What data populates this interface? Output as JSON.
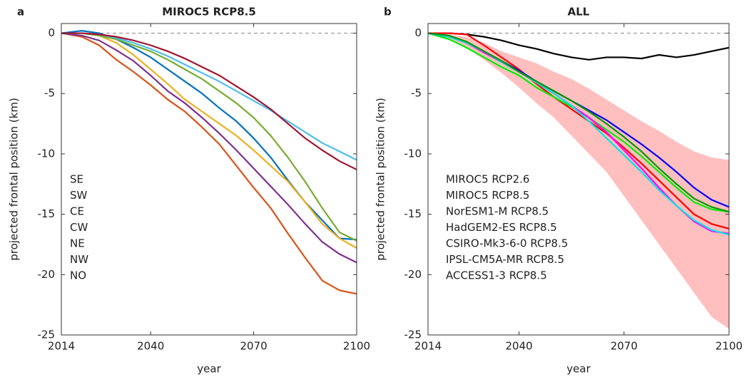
{
  "chart_data": [
    {
      "type": "line",
      "panel": "a",
      "title": "MIROC5 RCP8.5",
      "x_label": "year",
      "y_label": "projected frontal position (km)",
      "xlim": [
        2014,
        2100
      ],
      "xticks": [
        2014,
        2040,
        2070,
        2100
      ],
      "ylim": [
        -25,
        0.8
      ],
      "yticks": [
        -25,
        -20,
        -15,
        -10,
        -5,
        0
      ],
      "zero_line": 0,
      "legend": "left",
      "x": [
        2014,
        2020,
        2025,
        2030,
        2035,
        2040,
        2045,
        2050,
        2055,
        2060,
        2065,
        2070,
        2075,
        2080,
        2085,
        2090,
        2095,
        2100
      ],
      "series": [
        {
          "name": "SE",
          "color": "#0072bd",
          "values": [
            0,
            0.2,
            0,
            -0.5,
            -1.2,
            -2,
            -3,
            -4,
            -5,
            -6.2,
            -7.3,
            -8.7,
            -10.3,
            -12.2,
            -14,
            -15.5,
            -17,
            -17.1
          ]
        },
        {
          "name": "SW",
          "color": "#d95319",
          "values": [
            0,
            -0.3,
            -1,
            -2.2,
            -3.2,
            -4.3,
            -5.5,
            -6.5,
            -7.8,
            -9.2,
            -11,
            -12.8,
            -14.5,
            -16.6,
            -18.6,
            -20.5,
            -21.3,
            -21.6
          ]
        },
        {
          "name": "CE",
          "color": "#edb120",
          "values": [
            0,
            0,
            -0.2,
            -0.8,
            -1.8,
            -3,
            -4.2,
            -5.5,
            -6.5,
            -7.5,
            -8.5,
            -9.7,
            -11,
            -12.3,
            -14,
            -15.8,
            -17,
            -17.8
          ]
        },
        {
          "name": "CW",
          "color": "#7e2f8e",
          "values": [
            0,
            -0.2,
            -0.6,
            -1.4,
            -2.3,
            -3.5,
            -4.8,
            -5.8,
            -7,
            -8.3,
            -9.7,
            -11.2,
            -12.7,
            -14.2,
            -15.8,
            -17.3,
            -18.3,
            -19
          ]
        },
        {
          "name": "NE",
          "color": "#77ac30",
          "values": [
            0,
            0,
            -0.2,
            -0.5,
            -1,
            -1.5,
            -2.2,
            -3,
            -3.8,
            -4.8,
            -5.8,
            -7,
            -8.5,
            -10.3,
            -12.3,
            -14.5,
            -16.5,
            -17.2
          ]
        },
        {
          "name": "NW",
          "color": "#4dbeee",
          "values": [
            0,
            0,
            -0.1,
            -0.4,
            -0.8,
            -1.3,
            -1.9,
            -2.6,
            -3.3,
            -4,
            -4.8,
            -5.6,
            -6.4,
            -7.3,
            -8.2,
            -9.1,
            -9.8,
            -10.5
          ]
        },
        {
          "name": "NO",
          "color": "#a2142f",
          "values": [
            0,
            0,
            -0.1,
            -0.3,
            -0.6,
            -1,
            -1.5,
            -2.1,
            -2.8,
            -3.5,
            -4.4,
            -5.3,
            -6.3,
            -7.5,
            -8.7,
            -9.7,
            -10.6,
            -11.3
          ]
        }
      ]
    },
    {
      "type": "line",
      "panel": "b",
      "title": "ALL",
      "x_label": "year",
      "y_label": "projected frontal position (km)",
      "xlim": [
        2014,
        2100
      ],
      "xticks": [
        2014,
        2040,
        2070,
        2100
      ],
      "ylim": [
        -25,
        0.8
      ],
      "yticks": [
        -25,
        -20,
        -15,
        -10,
        -5,
        0
      ],
      "zero_line": 0,
      "legend": "left",
      "x": [
        2014,
        2020,
        2025,
        2030,
        2035,
        2040,
        2045,
        2050,
        2055,
        2060,
        2065,
        2070,
        2075,
        2080,
        2085,
        2090,
        2095,
        2100
      ],
      "band": {
        "color": "#ffbfbf",
        "upper": [
          0,
          -0.1,
          -0.3,
          -0.8,
          -1.5,
          -2,
          -2.5,
          -3.2,
          -3.8,
          -4.6,
          -5.5,
          -6.4,
          -7.3,
          -8.1,
          -9,
          -9.8,
          -10.3,
          -10.5
        ],
        "lower": [
          0,
          -0.5,
          -1.2,
          -2.2,
          -3.3,
          -4.5,
          -5.8,
          -7,
          -8.5,
          -10,
          -11.5,
          -13.5,
          -15.5,
          -17.5,
          -19.5,
          -21.5,
          -23.5,
          -24.5
        ]
      },
      "series": [
        {
          "name": "MIROC5 RCP2.6",
          "color": "#000000",
          "values": [
            0,
            0,
            -0.1,
            -0.3,
            -0.6,
            -1,
            -1.3,
            -1.7,
            -2,
            -2.2,
            -2,
            -2,
            -2.1,
            -1.8,
            -2,
            -1.8,
            -1.5,
            -1.2
          ]
        },
        {
          "name": "MIROC5 RCP8.5",
          "color": "#ff0000",
          "values": [
            0,
            0,
            -0.1,
            -1,
            -2,
            -3,
            -4.2,
            -5.3,
            -6.3,
            -7.3,
            -8.3,
            -9.5,
            -10.8,
            -12.2,
            -13.6,
            -15,
            -15.8,
            -16.2
          ]
        },
        {
          "name": "NorESM1-M RCP8.5",
          "color": "#00ee00",
          "values": [
            0,
            -0.5,
            -1.2,
            -2,
            -2.8,
            -3.5,
            -4.5,
            -5.3,
            -6.1,
            -7,
            -8,
            -9,
            -10.2,
            -11.5,
            -12.8,
            -14,
            -14.6,
            -14.8
          ]
        },
        {
          "name": "HadGEM2-ES RCP8.5",
          "color": "#0000ff",
          "values": [
            0,
            -0.3,
            -0.8,
            -1.5,
            -2.3,
            -3.1,
            -4,
            -4.8,
            -5.6,
            -6.4,
            -7.2,
            -8.2,
            -9.2,
            -10.3,
            -11.5,
            -12.8,
            -13.8,
            -14.4
          ]
        },
        {
          "name": "CSIRO-Mk3-6-0 RCP8.5",
          "color": "#ff00ff",
          "values": [
            0,
            -0.3,
            -0.8,
            -1.6,
            -2.4,
            -3.2,
            -4.1,
            -5,
            -6,
            -7,
            -8.2,
            -9.7,
            -11.2,
            -12.8,
            -14.3,
            -15.6,
            -16.4,
            -16.6
          ]
        },
        {
          "name": "IPSL-CM5A-MR RCP8.5",
          "color": "#00e5e5",
          "values": [
            0,
            -0.3,
            -0.8,
            -1.5,
            -2.4,
            -3.2,
            -4.1,
            -5,
            -6,
            -7.3,
            -8.7,
            -10.1,
            -11.5,
            -13,
            -14.3,
            -15.5,
            -16.3,
            -16.7
          ]
        },
        {
          "name": "ACCESS1-3 RCP8.5",
          "color": "#009900",
          "values": [
            0,
            -0.2,
            -0.7,
            -1.5,
            -2.3,
            -3.2,
            -4,
            -4.8,
            -5.6,
            -6.5,
            -7.5,
            -8.6,
            -9.8,
            -11.2,
            -12.5,
            -13.7,
            -14.4,
            -14.8
          ]
        }
      ]
    }
  ]
}
